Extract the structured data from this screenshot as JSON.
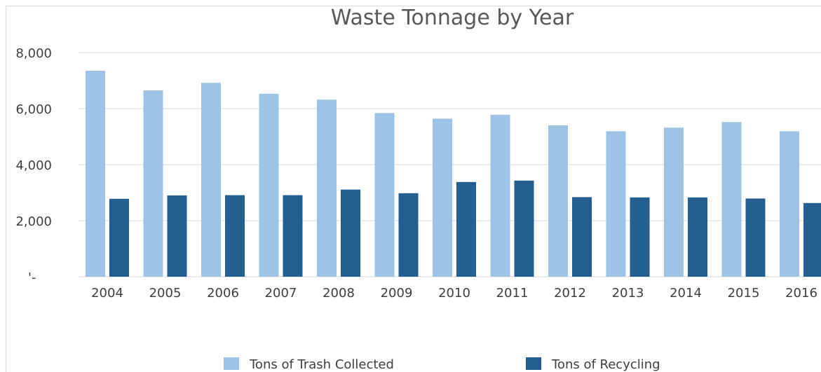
{
  "chart_data": {
    "type": "bar",
    "title": "Waste Tonnage by Year",
    "xlabel": "",
    "ylabel": "",
    "categories": [
      "2004",
      "2005",
      "2006",
      "2007",
      "2008",
      "2009",
      "2010",
      "2011",
      "2012",
      "2013",
      "2014",
      "2015",
      "2016"
    ],
    "series": [
      {
        "name": "Tons of Trash Collected",
        "color": "#9dc3e6",
        "values": [
          7350,
          6650,
          6920,
          6530,
          6320,
          5840,
          5640,
          5780,
          5400,
          5190,
          5320,
          5520,
          5190
        ]
      },
      {
        "name": "Tons of Recycling",
        "color": "#255e91",
        "values": [
          2780,
          2900,
          2910,
          2910,
          3110,
          2980,
          3380,
          3430,
          2840,
          2830,
          2830,
          2790,
          2630
        ]
      }
    ],
    "ylim": [
      0,
      8000
    ],
    "yticks": [
      0,
      2000,
      4000,
      6000,
      8000
    ],
    "ytick_labels": [
      "'-",
      "2,000",
      "4,000",
      "6,000",
      "8,000"
    ],
    "grid": true,
    "legend_position": "bottom"
  }
}
